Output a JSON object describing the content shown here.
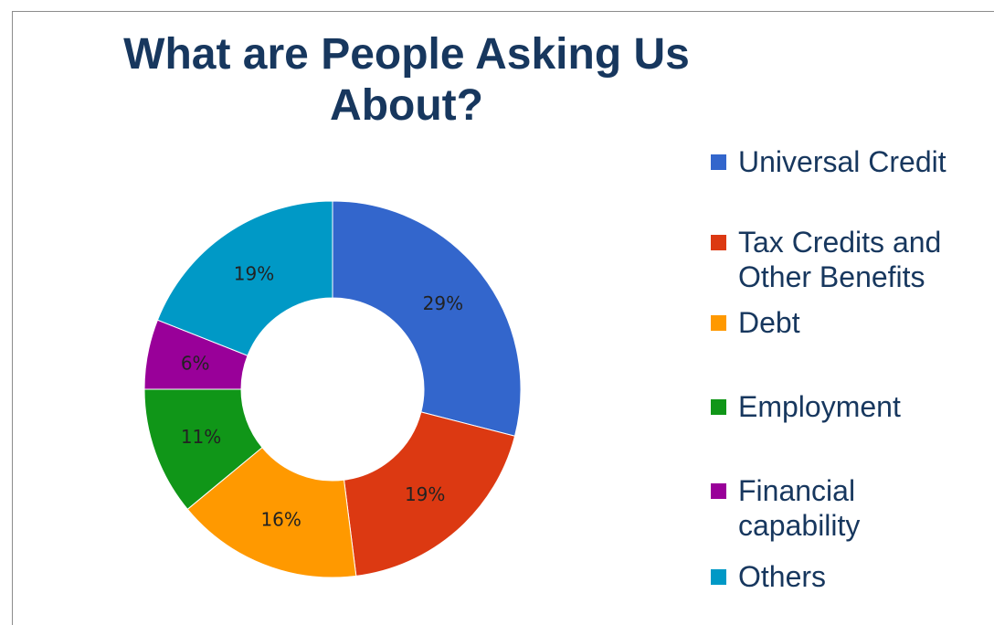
{
  "chart_data": {
    "type": "pie",
    "variant": "donut",
    "title": "What are People Asking Us About?",
    "categories": [
      "Universal Credit",
      "Tax Credits and Other Benefits",
      "Debt",
      "Employment",
      "Financial capability",
      "Others"
    ],
    "values": [
      29,
      19,
      16,
      11,
      6,
      19
    ],
    "value_labels": [
      "29%",
      "19%",
      "16%",
      "11%",
      "6%",
      "19%"
    ],
    "colors": [
      "#3366cc",
      "#dc3912",
      "#ff9900",
      "#109618",
      "#990099",
      "#0099c6"
    ],
    "legend": "right",
    "legend_entries": [
      "Universal Credit",
      "Tax Credits and\nOther Benefits",
      "Debt",
      "Employment",
      "Financial\ncapability",
      "Others"
    ]
  }
}
